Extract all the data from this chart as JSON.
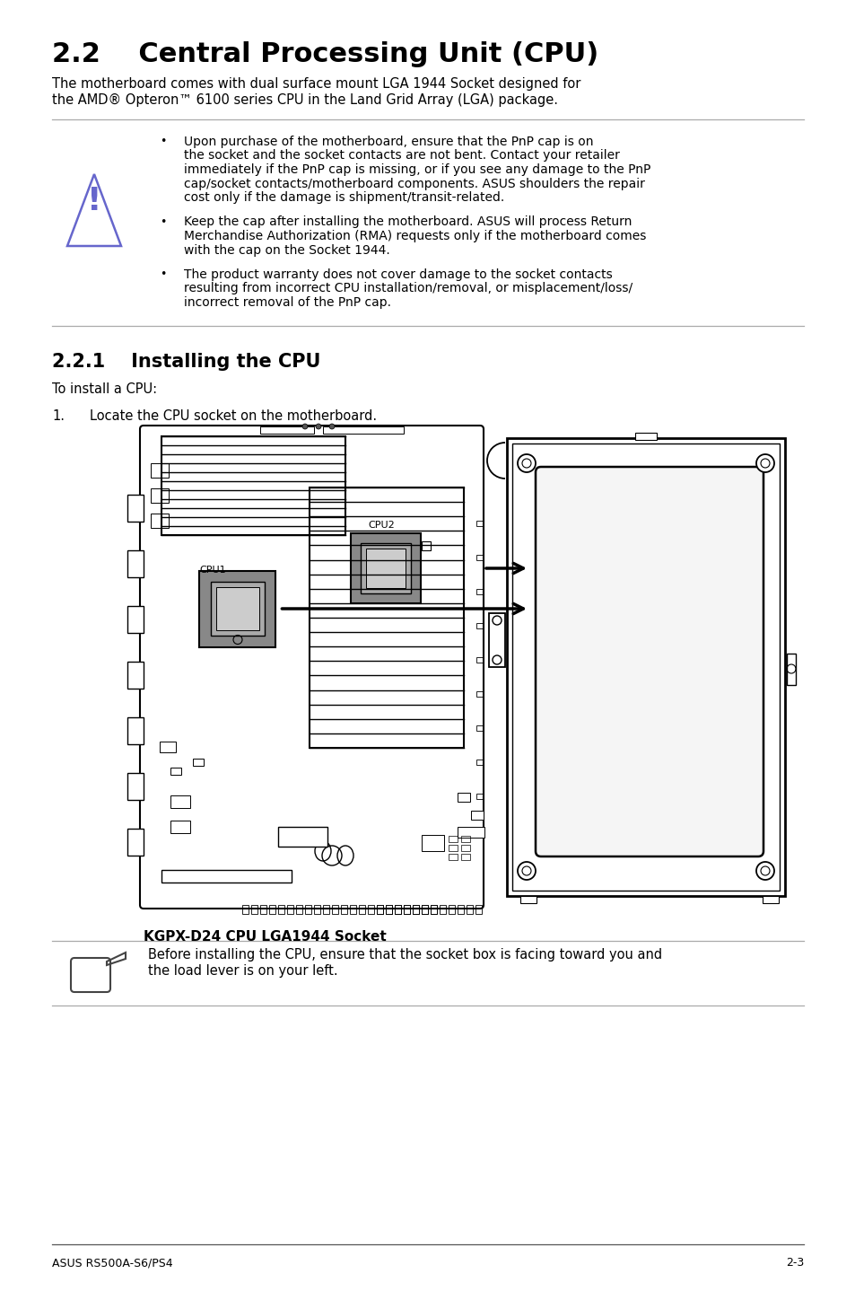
{
  "bg_color": "#ffffff",
  "title": "2.2    Central Processing Unit (CPU)",
  "subtitle_line1": "The motherboard comes with dual surface mount LGA 1944 Socket designed for",
  "subtitle_line2": "the AMD® Opteron™ 6100 series CPU in the Land Grid Array (LGA) package.",
  "warning_bullets": [
    "Upon purchase of the motherboard, ensure that the PnP cap is on\nthe socket and the socket contacts are not bent. Contact your retailer\nimmediately if the PnP cap is missing, or if you see any damage to the PnP\ncap/socket contacts/motherboard components. ASUS shoulders the repair\ncost only if the damage is shipment/transit-related.",
    "Keep the cap after installing the motherboard. ASUS will process Return\nMerchandise Authorization (RMA) requests only if the motherboard comes\nwith the cap on the Socket 1944.",
    "The product warranty does not cover damage to the socket contacts\nresulting from incorrect CPU installation/removal, or misplacement/loss/\nincorrect removal of the PnP cap."
  ],
  "section_title": "2.2.1    Installing the CPU",
  "intro_text": "To install a CPU:",
  "step1_text": "Locate the CPU socket on the motherboard.",
  "image_caption": "KGPX-D24 CPU LGA1944 Socket",
  "note_text_line1": "Before installing the CPU, ensure that the socket box is facing toward you and",
  "note_text_line2": "the load lever is on your left.",
  "footer_left": "ASUS RS500A-S6/PS4",
  "footer_right": "2-3",
  "line_color": "#aaaaaa",
  "text_color": "#000000",
  "warn_color": "#6666cc"
}
